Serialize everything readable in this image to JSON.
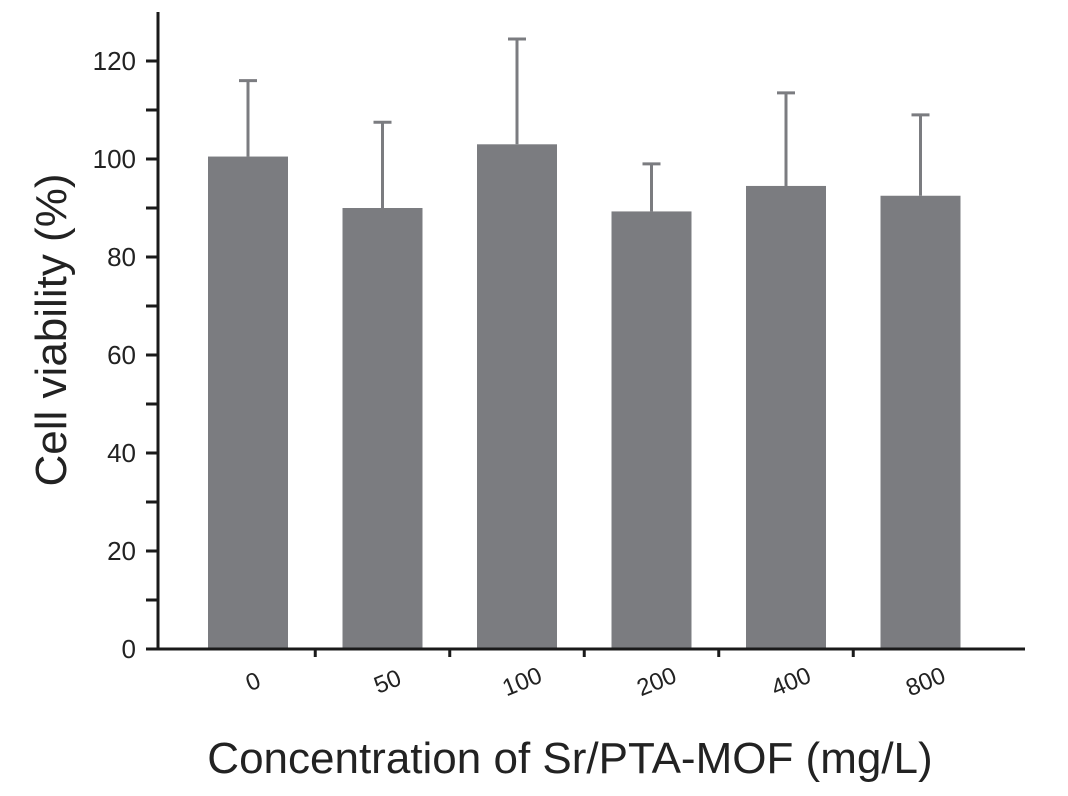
{
  "chart_data": {
    "type": "bar",
    "categories": [
      "0",
      "50",
      "100",
      "200",
      "400",
      "800"
    ],
    "values": [
      100.5,
      90,
      103,
      89.3,
      94.5,
      92.5
    ],
    "errors": [
      15.5,
      17.5,
      21.5,
      9.7,
      19,
      16.5
    ],
    "xlabel": "Concentration of Sr/PTA-MOF (mg/L)",
    "ylabel": "Cell viability (%)",
    "yticks": [
      "0",
      "20",
      "40",
      "60",
      "80",
      "100",
      "120"
    ],
    "ylim": [
      0,
      130
    ],
    "grid": false
  },
  "colors": {
    "bar": "#7b7c80",
    "error_bar": "#7b7c80",
    "axis": "#1a1a1a"
  }
}
